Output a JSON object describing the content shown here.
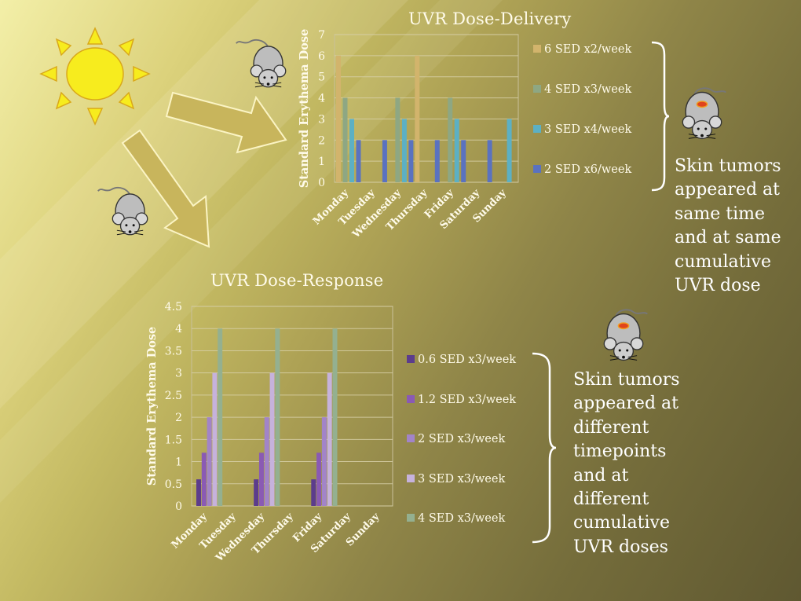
{
  "colors": {
    "orange": "#d2b46c",
    "green": "#8ea783",
    "teal": "#5cb0c4",
    "blue": "#5a72c0",
    "purple_dark": "#5c3c8c",
    "purple_mid": "#8a5ab4",
    "purple_light": "#a284c8",
    "purple_pale": "#c6b2dc",
    "green_pale": "#94b090"
  },
  "chart_data": [
    {
      "type": "bar",
      "title": "UVR Dose-Delivery",
      "xlabel": "",
      "ylabel": "Standard Erythema Dose",
      "categories": [
        "Monday",
        "Tuesday",
        "Wednesday",
        "Thursday",
        "Friday",
        "Saturday",
        "Sunday"
      ],
      "ylim": [
        0,
        7
      ],
      "yticks": [
        "0",
        "1",
        "2",
        "3",
        "4",
        "5",
        "6",
        "7"
      ],
      "grid": true,
      "legend": "right",
      "series": [
        {
          "name": "6 SED x2/week",
          "color": "#d2b46c",
          "values": [
            6,
            0,
            0,
            6,
            0,
            0,
            0
          ]
        },
        {
          "name": "4 SED x3/week",
          "color": "#8ea783",
          "values": [
            4,
            0,
            4,
            0,
            4,
            0,
            0
          ]
        },
        {
          "name": "3 SED x4/week",
          "color": "#5cb0c4",
          "values": [
            3,
            0,
            3,
            0,
            3,
            0,
            3
          ]
        },
        {
          "name": "2 SED x6/week",
          "color": "#5a72c0",
          "values": [
            2,
            2,
            2,
            2,
            2,
            2,
            0
          ]
        }
      ]
    },
    {
      "type": "bar",
      "title": "UVR Dose-Response",
      "xlabel": "",
      "ylabel": "Standard Erythema Dose",
      "categories": [
        "Monday",
        "Tuesday",
        "Wednesday",
        "Thursday",
        "Friday",
        "Saturday",
        "Sunday"
      ],
      "ylim": [
        0,
        4.5
      ],
      "yticks": [
        "0",
        "0.5",
        "1",
        "1.5",
        "2",
        "2.5",
        "3",
        "3.5",
        "4",
        "4.5"
      ],
      "grid": true,
      "legend": "right",
      "series": [
        {
          "name": "0.6 SED x3/week",
          "color": "#5c3c8c",
          "values": [
            0.6,
            0,
            0.6,
            0,
            0.6,
            0,
            0
          ]
        },
        {
          "name": "1.2 SED x3/week",
          "color": "#8a5ab4",
          "values": [
            1.2,
            0,
            1.2,
            0,
            1.2,
            0,
            0
          ]
        },
        {
          "name": "2 SED x3/week",
          "color": "#a284c8",
          "values": [
            2,
            0,
            2,
            0,
            2,
            0,
            0
          ]
        },
        {
          "name": "3 SED x3/week",
          "color": "#c6b2dc",
          "values": [
            3,
            0,
            3,
            0,
            3,
            0,
            0
          ]
        },
        {
          "name": "4 SED x3/week",
          "color": "#94b090",
          "values": [
            4,
            0,
            4,
            0,
            4,
            0,
            0
          ]
        }
      ]
    }
  ],
  "notes": {
    "delivery": [
      "Skin tumors",
      "appeared at",
      "same time",
      "and at same",
      "cumulative",
      "UVR dose"
    ],
    "response": [
      "Skin tumors",
      "appeared at",
      "different",
      "timepoints",
      "and at",
      "different",
      "cumulative",
      "UVR doses"
    ]
  },
  "icons": {
    "sun": "sun-icon",
    "arrow": "arrow-icon",
    "mouse": "mouse-icon",
    "mouse_tumor": "mouse-with-tumor-icon",
    "bracket": "right-brace-icon"
  }
}
